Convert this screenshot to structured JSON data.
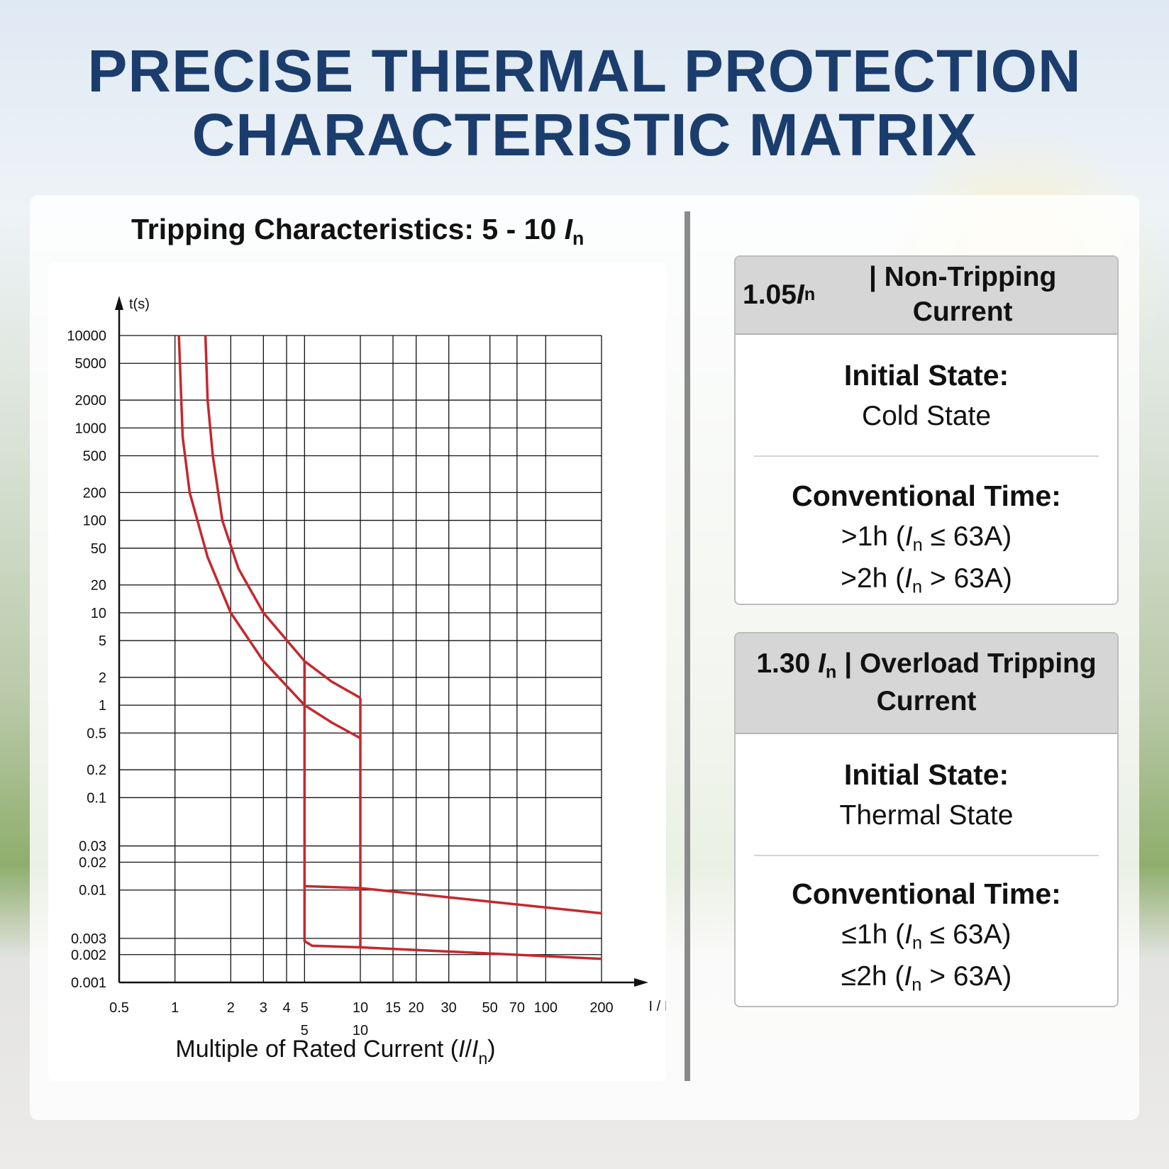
{
  "header": {
    "title_lines": [
      "PRECISE THERMAL PROTECTION",
      "CHARACTERISTIC MATRIX"
    ]
  },
  "chart_data": {
    "type": "line",
    "title": [
      "Tripping Characteristics: 5 - 10 ",
      "I",
      "n"
    ],
    "y_label": "t(s)",
    "x_axis_end_label": "I / In",
    "x_label": [
      "Multiple of Rated Current (",
      "I",
      "/",
      "I",
      "n",
      ")"
    ],
    "log_x": true,
    "log_y": true,
    "grid": true,
    "xlim": [
      0.5,
      200
    ],
    "ylim": [
      0.001,
      10000
    ],
    "xticks": [
      0.5,
      1,
      2,
      3,
      4,
      5,
      10,
      15,
      20,
      30,
      50,
      70,
      100,
      200
    ],
    "xticks_secondary": [
      5,
      10
    ],
    "yticks": [
      10000,
      5000,
      2000,
      1000,
      500,
      200,
      100,
      50,
      20,
      10,
      5,
      2,
      1,
      0.5,
      0.2,
      0.1,
      0.03,
      0.02,
      0.01,
      0.003,
      0.002,
      0.001
    ],
    "series": [
      {
        "color": "#c4282e",
        "x": [
          1.46,
          1.5,
          1.6,
          1.8,
          2.2,
          3,
          5,
          7,
          10
        ],
        "values": [
          10000,
          2000,
          500,
          100,
          30,
          10,
          3,
          1.8,
          1.2
        ]
      },
      {
        "color": "#c4282e",
        "x": [
          1.05,
          1.1,
          1.2,
          1.5,
          2,
          3,
          5,
          7,
          10
        ],
        "values": [
          10000,
          800,
          200,
          40,
          10,
          3,
          1,
          0.65,
          0.44
        ]
      },
      {
        "color": "#c4282e",
        "x": [
          5,
          5,
          5.5,
          10,
          200
        ],
        "values": [
          3,
          0.0028,
          0.0025,
          0.0024,
          0.0018
        ]
      },
      {
        "color": "#c4282e",
        "x": [
          10,
          10
        ],
        "values": [
          1.2,
          0.0024
        ]
      },
      {
        "color": "#c4282e",
        "x": [
          5,
          10,
          200
        ],
        "values": [
          0.011,
          0.0105,
          0.0056
        ]
      }
    ]
  },
  "cards": [
    {
      "heading": [
        "1.05 ",
        "I",
        "n",
        " | Non-Tripping Current"
      ],
      "state_label": "Initial State:",
      "state": "Cold State",
      "time_label": "Conventional Time:",
      "times": [
        [
          ">1h (",
          "I",
          "n",
          " ≤ 63A)"
        ],
        [
          ">2h (",
          "I",
          "n",
          " > 63A)"
        ]
      ]
    },
    {
      "heading": [
        "1.30 ",
        "I",
        "n",
        " | Overload Tripping Current"
      ],
      "state_label": "Initial State:",
      "state": "Thermal State",
      "time_label": "Conventional Time:",
      "times": [
        [
          "≤1h (",
          "I",
          "n",
          " ≤ 63A)"
        ],
        [
          "≤2h (",
          "I",
          "n",
          " > 63A)"
        ]
      ]
    }
  ]
}
